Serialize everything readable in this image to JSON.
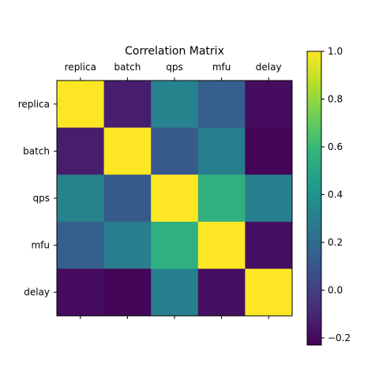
{
  "chart_data": {
    "type": "heatmap",
    "title": "Correlation Matrix",
    "labels": [
      "replica",
      "batch",
      "qps",
      "mfu",
      "delay"
    ],
    "matrix": [
      [
        1.0,
        -0.13,
        0.32,
        0.14,
        -0.19
      ],
      [
        -0.13,
        1.0,
        0.12,
        0.29,
        -0.22
      ],
      [
        0.32,
        0.12,
        1.0,
        0.55,
        0.3
      ],
      [
        0.14,
        0.29,
        0.55,
        1.0,
        -0.18
      ],
      [
        -0.19,
        -0.22,
        0.3,
        -0.18,
        1.0
      ]
    ],
    "colorbar": {
      "colormap": "viridis",
      "vmin": -0.23,
      "vmax": 1.0,
      "ticks": [
        "−0.2",
        "0.0",
        "0.2",
        "0.4",
        "0.6",
        "0.8",
        "1.0"
      ],
      "tick_values": [
        -0.2,
        0.0,
        0.2,
        0.4,
        0.6,
        0.8,
        1.0
      ]
    },
    "xaxis_position": "top",
    "grid": false
  }
}
